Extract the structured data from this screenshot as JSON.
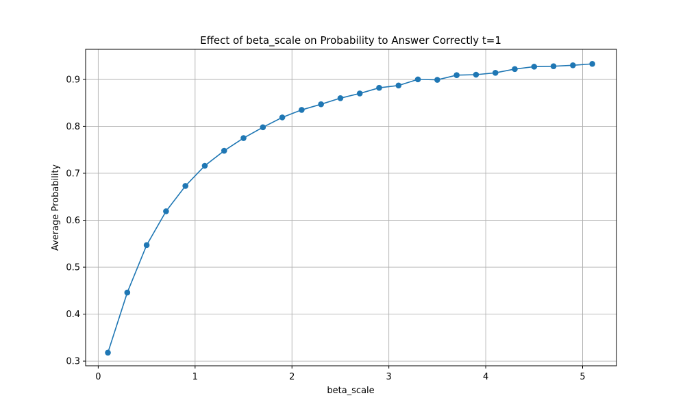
{
  "chart_data": {
    "type": "line",
    "title": "Effect of beta_scale on Probability to Answer Correctly t=1",
    "xlabel": "beta_scale",
    "ylabel": "Average Probability",
    "xlim": [
      -0.13,
      5.35
    ],
    "ylim": [
      0.29,
      0.964
    ],
    "xticks": [
      0,
      1,
      2,
      3,
      4,
      5
    ],
    "yticks": [
      0.3,
      0.4,
      0.5,
      0.6,
      0.7,
      0.8,
      0.9
    ],
    "xtick_labels": [
      "0",
      "1",
      "2",
      "3",
      "4",
      "5"
    ],
    "ytick_labels": [
      "0.3",
      "0.4",
      "0.5",
      "0.6",
      "0.7",
      "0.8",
      "0.9"
    ],
    "grid": true,
    "legend": "none",
    "marker": "circle",
    "series": [
      {
        "color": "#1f77b4",
        "x": [
          0.1,
          0.3,
          0.5,
          0.7,
          0.9,
          1.1,
          1.3,
          1.5,
          1.7,
          1.9,
          2.1,
          2.3,
          2.5,
          2.7,
          2.9,
          3.1,
          3.3,
          3.5,
          3.7,
          3.9,
          4.1,
          4.3,
          4.5,
          4.7,
          4.9,
          5.1
        ],
        "y": [
          0.318,
          0.446,
          0.547,
          0.619,
          0.673,
          0.716,
          0.748,
          0.775,
          0.798,
          0.819,
          0.835,
          0.847,
          0.86,
          0.87,
          0.882,
          0.887,
          0.9,
          0.899,
          0.909,
          0.91,
          0.914,
          0.922,
          0.927,
          0.928,
          0.93,
          0.933
        ]
      }
    ]
  },
  "colors": {
    "series": "#1f77b4",
    "grid": "#b0b0b0",
    "axes": "#000000",
    "background": "#ffffff"
  }
}
